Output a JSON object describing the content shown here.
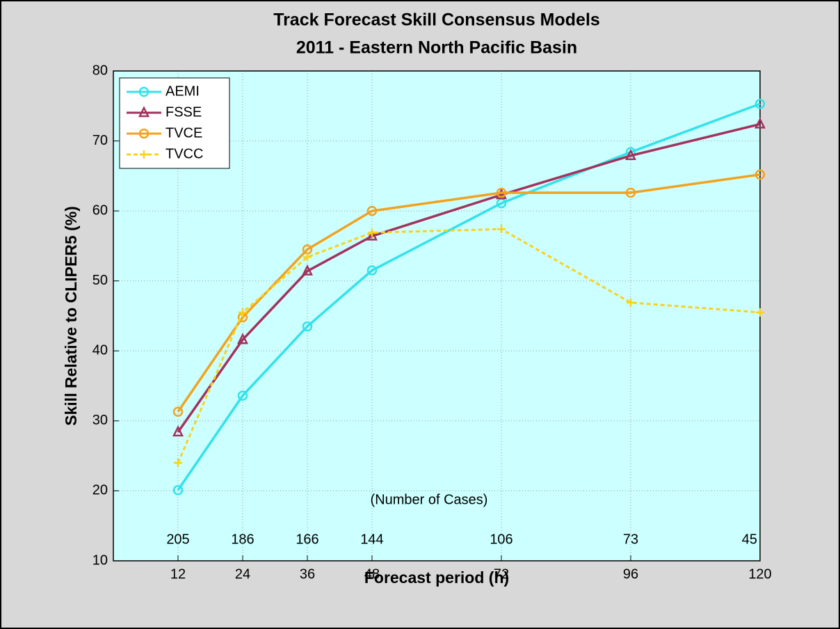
{
  "chart_data": {
    "type": "line",
    "title": "Track Forecast Skill Consensus Models",
    "subtitle": "2011 - Eastern North Pacific Basin",
    "x_label": "Forecast period (h)",
    "y_label": "Skill Relative to CLIPER5 (%)",
    "x": [
      12,
      24,
      36,
      48,
      72,
      96,
      120
    ],
    "series": [
      {
        "name": "AEMI",
        "color": "#33e2ea",
        "marker": "circle",
        "linestyle": "solid",
        "values": [
          20.1,
          33.6,
          43.5,
          51.5,
          61.1,
          68.4,
          75.3
        ]
      },
      {
        "name": "FSSE",
        "color": "#a3325c",
        "marker": "triangle",
        "linestyle": "solid",
        "values": [
          28.4,
          41.6,
          51.4,
          56.4,
          62.3,
          67.9,
          72.4
        ]
      },
      {
        "name": "TVCE",
        "color": "#f2a21e",
        "marker": "circle",
        "linestyle": "solid",
        "values": [
          31.3,
          44.8,
          54.5,
          60.0,
          62.6,
          62.6,
          65.2
        ]
      },
      {
        "name": "TVCC",
        "color": "#f9d21c",
        "marker": "plus",
        "linestyle": "dashed",
        "values": [
          24.0,
          45.5,
          53.4,
          56.9,
          57.4,
          46.9,
          45.5
        ]
      }
    ],
    "cases_label": "(Number of Cases)",
    "cases": [
      205,
      186,
      166,
      144,
      106,
      73,
      45
    ],
    "xlim": [
      0,
      120
    ],
    "xticks": [
      12,
      24,
      36,
      48,
      72,
      96,
      120
    ],
    "ylim": [
      10,
      80
    ],
    "yticks": [
      10,
      20,
      30,
      40,
      50,
      60,
      70,
      80
    ],
    "grid": true,
    "legend": "upper-left",
    "background": "#ccffff"
  }
}
